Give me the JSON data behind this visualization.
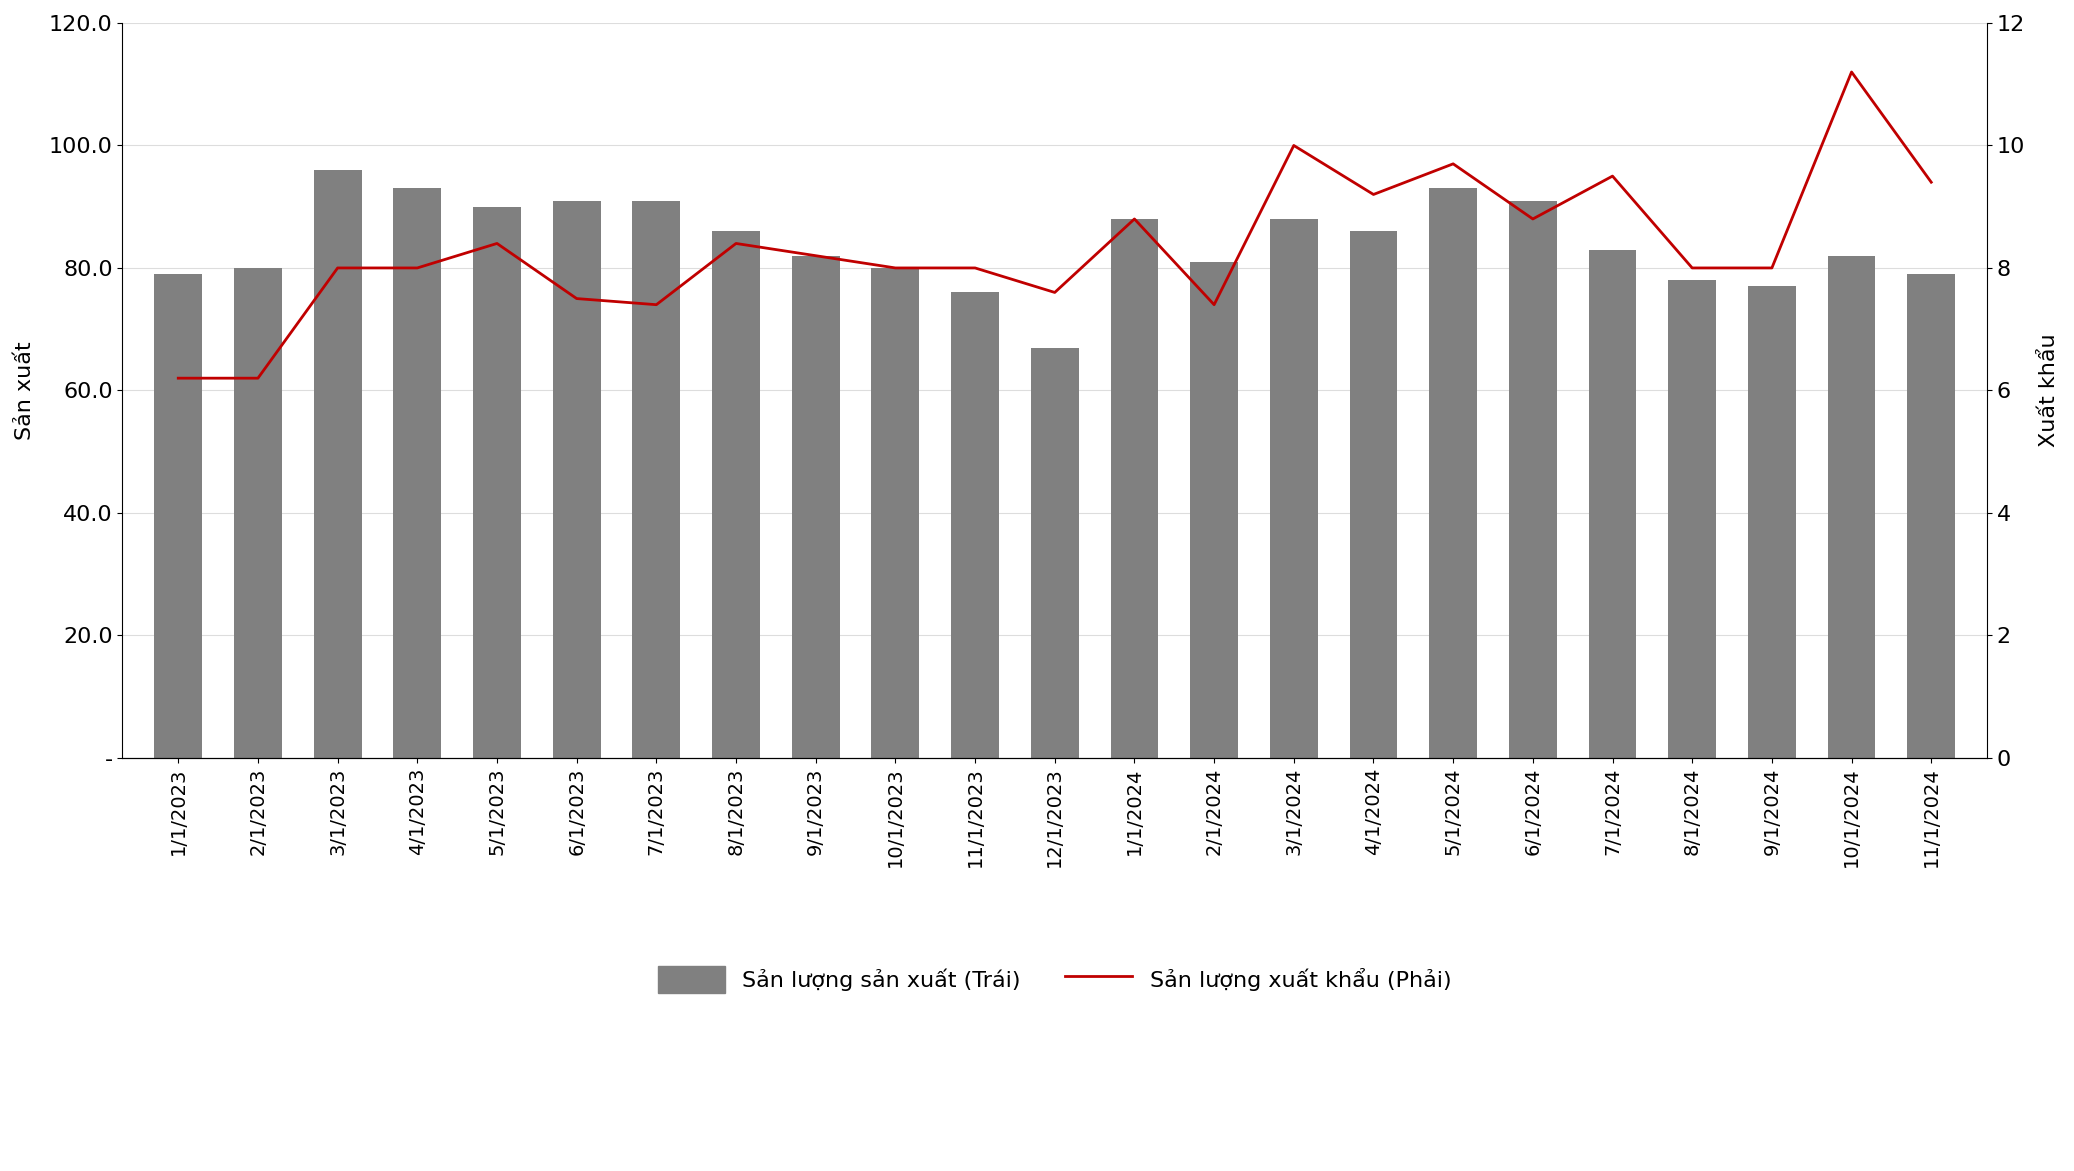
{
  "categories": [
    "1/1/2023",
    "2/1/2023",
    "3/1/2023",
    "4/1/2023",
    "5/1/2023",
    "6/1/2023",
    "7/1/2023",
    "8/1/2023",
    "9/1/2023",
    "10/1/2023",
    "11/1/2023",
    "12/1/2023",
    "1/1/2024",
    "2/1/2024",
    "3/1/2024",
    "4/1/2024",
    "5/1/2024",
    "6/1/2024",
    "7/1/2024",
    "8/1/2024",
    "9/1/2024",
    "10/1/2024",
    "11/1/2024"
  ],
  "bar_values": [
    79,
    80,
    96,
    93,
    90,
    91,
    91,
    86,
    82,
    80,
    76,
    67,
    88,
    81,
    88,
    86,
    93,
    91,
    83,
    78,
    77,
    82,
    79
  ],
  "line_values": [
    6.2,
    6.2,
    8.0,
    8.0,
    8.4,
    7.5,
    7.4,
    8.4,
    8.2,
    8.0,
    8.0,
    7.6,
    8.8,
    7.4,
    10.0,
    9.2,
    9.7,
    8.8,
    9.5,
    8.0,
    8.0,
    11.2,
    9.4
  ],
  "bar_color": "#808080",
  "line_color": "#c00000",
  "left_ylabel": "Sản xuất",
  "right_ylabel": "Xuất khẩu",
  "left_ylim": [
    0,
    120
  ],
  "right_ylim": [
    0,
    12
  ],
  "left_yticks": [
    0,
    20,
    40,
    60,
    80,
    100,
    120
  ],
  "left_yticklabels": [
    "-",
    "20.0",
    "40.0",
    "60.0",
    "80.0",
    "100.0",
    "120.0"
  ],
  "right_yticks": [
    0,
    2,
    4,
    6,
    8,
    10,
    12
  ],
  "right_yticklabels": [
    "0",
    "2",
    "4",
    "6",
    "8",
    "10",
    "12"
  ],
  "legend_bar_label": "Sản lượng sản xuất (Trái)",
  "legend_line_label": "Sản lượng xuất khẩu (Phải)",
  "background_color": "#ffffff",
  "line_width": 2.0
}
